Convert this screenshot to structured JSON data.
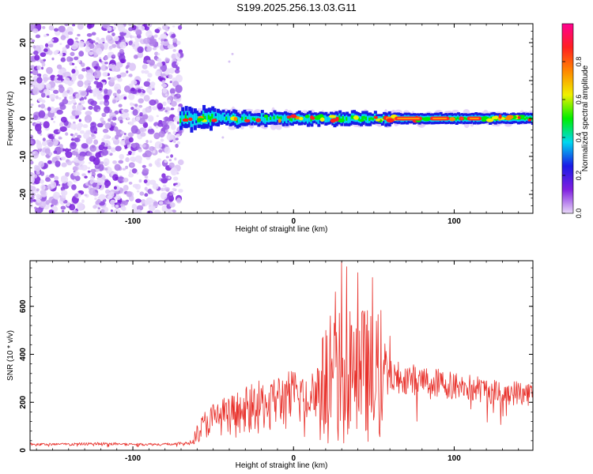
{
  "title": "S199.2025.256.13.03.G11",
  "chart_data": [
    {
      "type": "heatmap",
      "xlabel": "Height of straight line (km)",
      "ylabel": "Frequency (Hz)",
      "xlim": [
        -164,
        149
      ],
      "ylim": [
        -25,
        25
      ],
      "xticks": [
        -100,
        0,
        100
      ],
      "yticks": [
        -20,
        -10,
        0,
        10,
        20
      ],
      "xtick_labels": [
        "-100",
        "0",
        "100"
      ],
      "ytick_labels": [
        "-20",
        "-10",
        "0",
        "10",
        "20"
      ],
      "noise_region_x": [
        -164,
        -70
      ],
      "signal_band_x": [
        -70,
        149
      ],
      "signal_center_hz": 0,
      "colorbar": {
        "label": "Normalized spectral amplitude",
        "range": [
          0,
          1
        ],
        "ticks": [
          0.0,
          0.2,
          0.4,
          0.6,
          0.8
        ],
        "tick_labels": [
          "0.0",
          "0.2",
          "0.4",
          "0.6",
          "0.8"
        ],
        "colors": [
          "#e8d8f8",
          "#8020e0",
          "#1a1ae6",
          "#00d8f0",
          "#00ee00",
          "#f0f000",
          "#ff8800",
          "#ff2020",
          "#ff0090"
        ]
      }
    },
    {
      "type": "line",
      "xlabel": "Height of straight line (km)",
      "ylabel": "SNR (10 * v/v)",
      "xlim": [
        -164,
        149
      ],
      "ylim": [
        0,
        790
      ],
      "xticks": [
        -100,
        0,
        100
      ],
      "yticks": [
        0,
        200,
        400,
        600
      ],
      "xtick_labels": [
        "-100",
        "0",
        "100"
      ],
      "ytick_labels": [
        "0",
        "200",
        "400",
        "600"
      ],
      "color": "#e8302a",
      "series": [
        {
          "name": "SNR",
          "x": [
            -164,
            -140,
            -120,
            -100,
            -80,
            -65,
            -60,
            -55,
            -50,
            -45,
            -40,
            -30,
            -20,
            -10,
            0,
            10,
            20,
            25,
            30,
            32,
            35,
            40,
            45,
            50,
            55,
            60,
            70,
            80,
            90,
            100,
            110,
            120,
            130,
            140,
            149
          ],
          "y": [
            25,
            25,
            28,
            25,
            25,
            30,
            70,
            110,
            130,
            140,
            150,
            170,
            190,
            210,
            220,
            240,
            260,
            300,
            330,
            250,
            320,
            300,
            320,
            290,
            320,
            310,
            300,
            290,
            280,
            270,
            260,
            250,
            240,
            240,
            235
          ],
          "spikes": [
            {
              "x": 20,
              "y": 500
            },
            {
              "x": 23,
              "y": 560
            },
            {
              "x": 26,
              "y": 660
            },
            {
              "x": 30,
              "y": 785
            },
            {
              "x": 33,
              "y": 765
            },
            {
              "x": 36,
              "y": 520
            },
            {
              "x": 40,
              "y": 740
            },
            {
              "x": 43,
              "y": 580
            },
            {
              "x": 47,
              "y": 400
            },
            {
              "x": 49,
              "y": 720
            }
          ]
        }
      ]
    }
  ]
}
